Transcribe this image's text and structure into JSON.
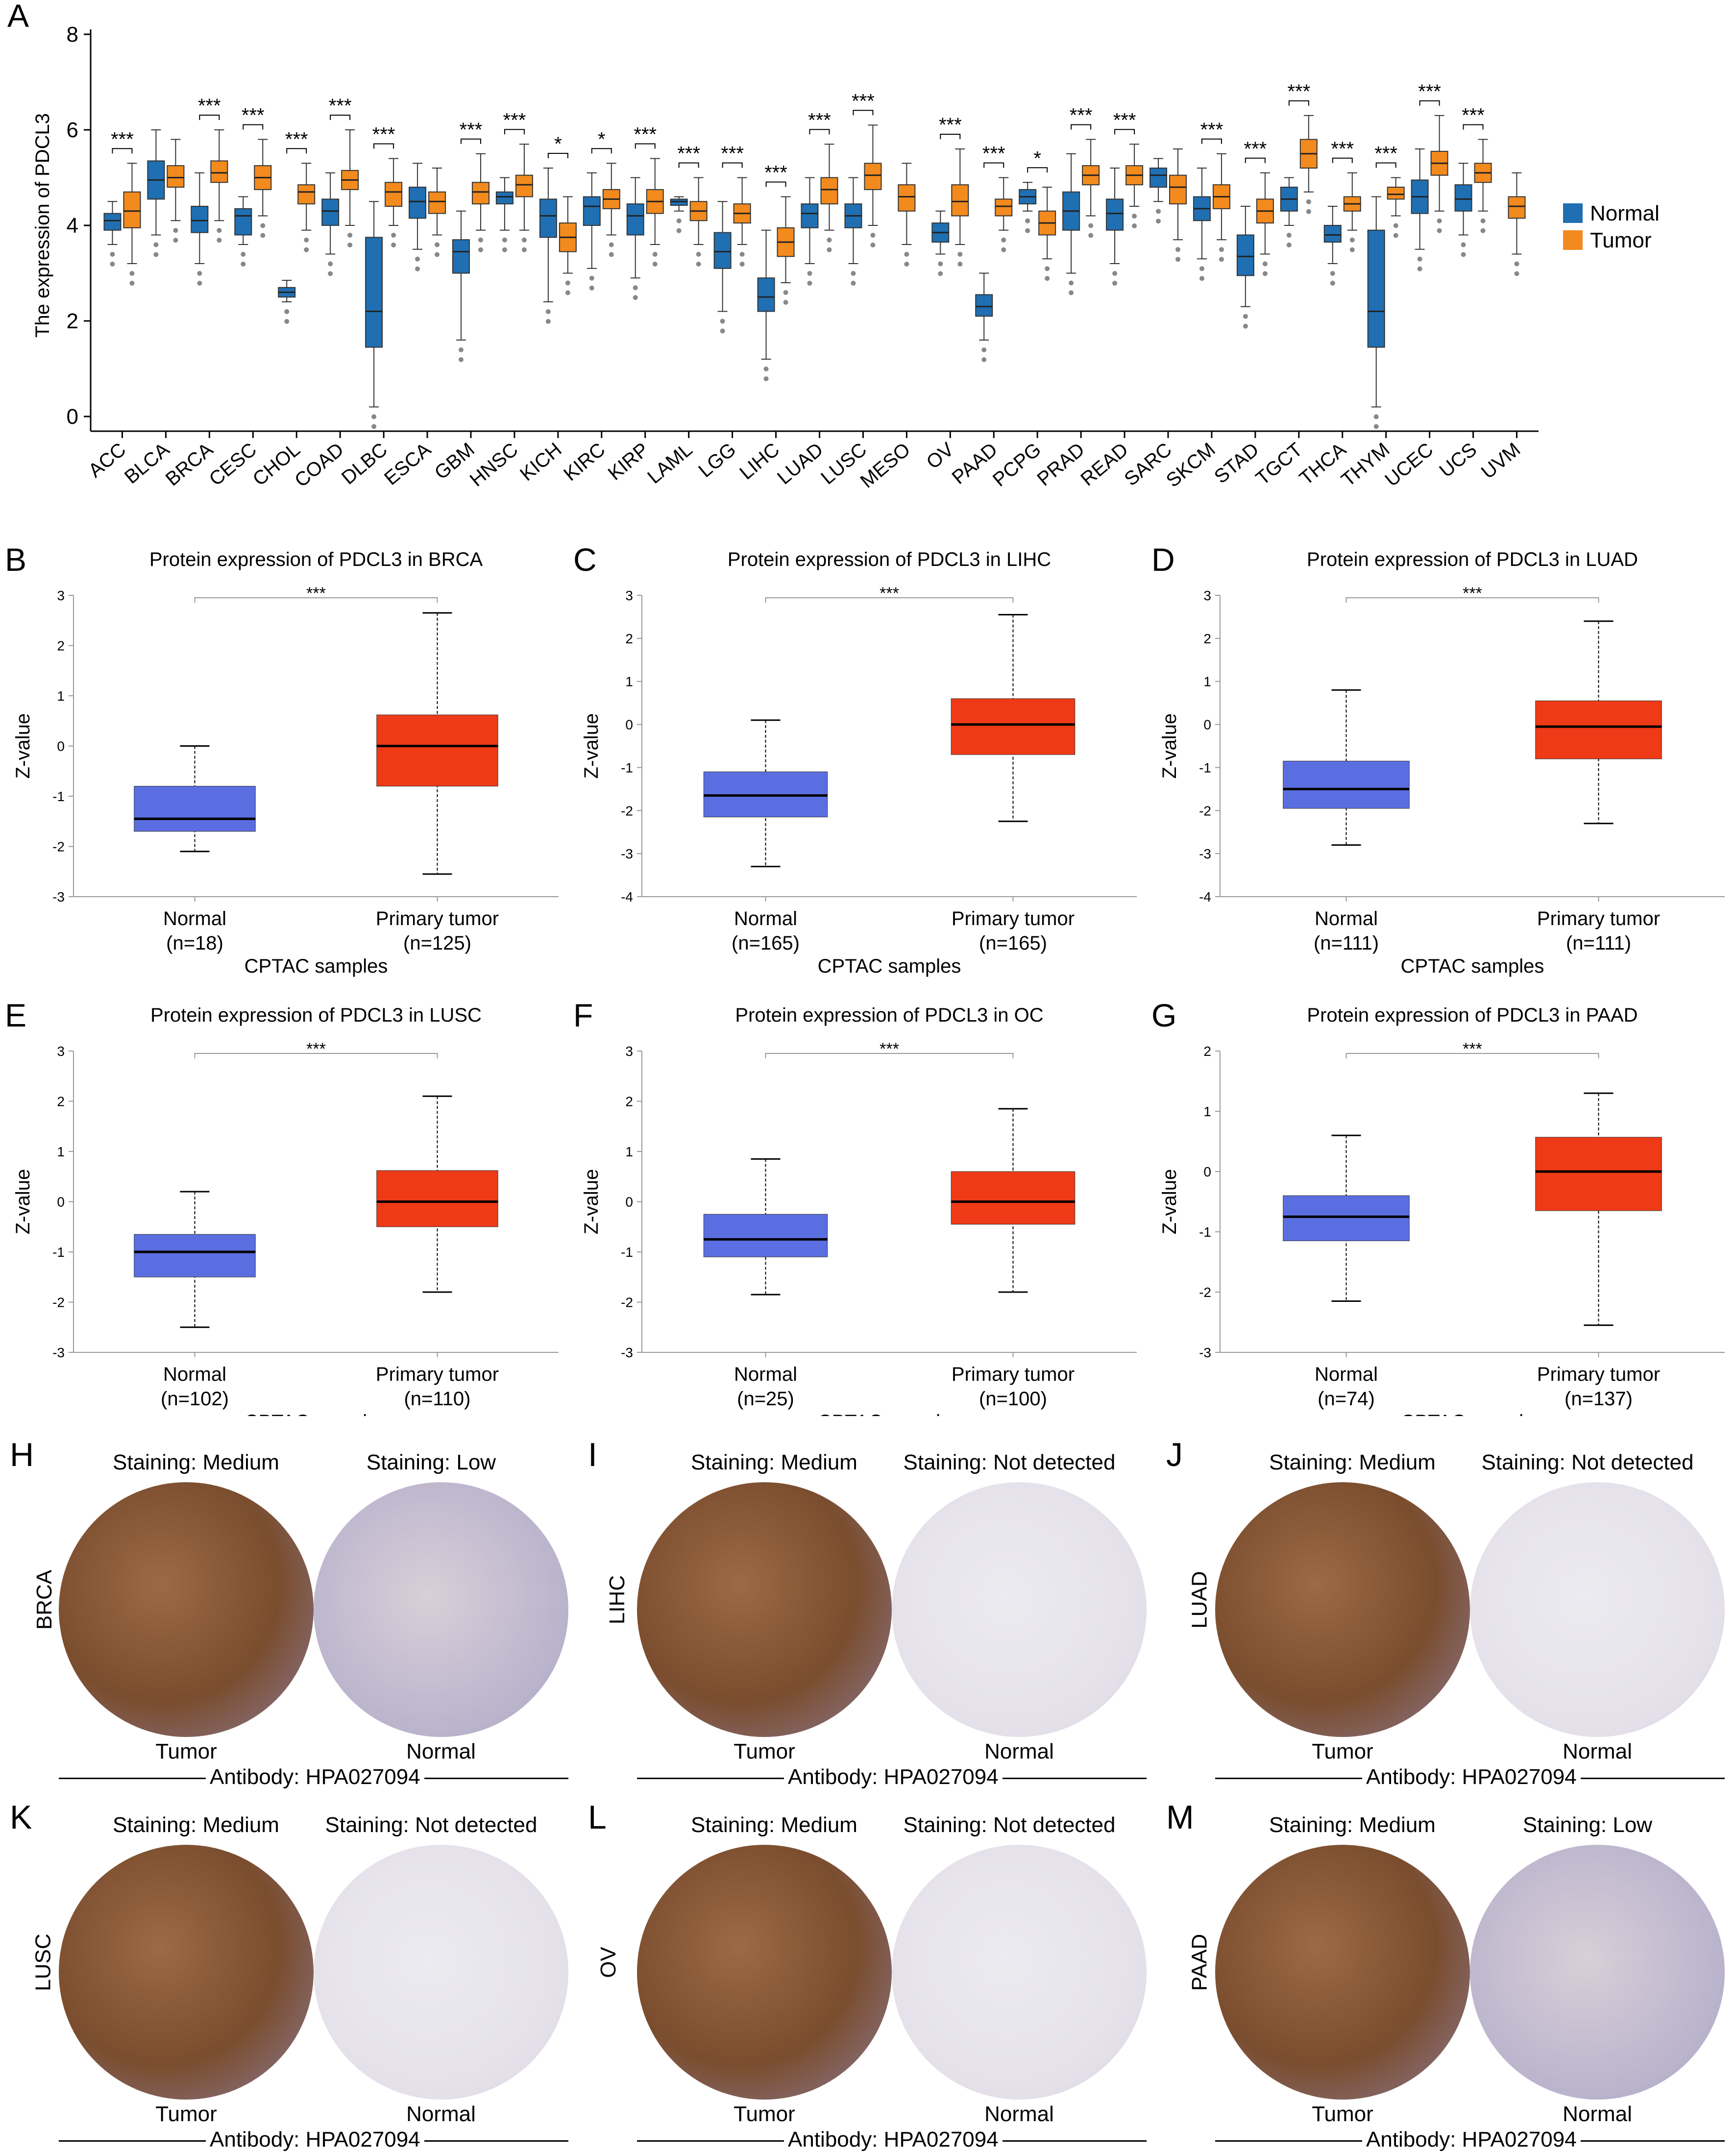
{
  "colors": {
    "normal_a": "#1f6fb2",
    "tumor_a": "#f28a1e",
    "normal_box": "#5b6ee1",
    "tumor_box": "#ee3a17",
    "stain_brown": "#9c6a45",
    "stain_brown_dark": "#7a4d2e",
    "stain_blue": "#b9b3cc",
    "stain_light": "#e4e0ea"
  },
  "chart_data": [
    {
      "panel": "A",
      "type": "box",
      "ylabel": "The expression of PDCL3",
      "ylim": [
        0,
        8
      ],
      "yticks": [
        0,
        2,
        4,
        6,
        8
      ],
      "legend": {
        "position": "right",
        "entries": [
          "Normal",
          "Tumor"
        ]
      },
      "categories": [
        {
          "name": "ACC",
          "normal": [
            3.6,
            3.9,
            4.1,
            4.25,
            4.5
          ],
          "tumor": [
            3.2,
            3.95,
            4.3,
            4.7,
            5.3
          ],
          "sig": "***"
        },
        {
          "name": "BLCA",
          "normal": [
            3.8,
            4.55,
            4.95,
            5.35,
            6.0
          ],
          "tumor": [
            4.1,
            4.8,
            5.0,
            5.25,
            5.8
          ],
          "sig": ""
        },
        {
          "name": "BRCA",
          "normal": [
            3.2,
            3.85,
            4.1,
            4.4,
            5.1
          ],
          "tumor": [
            4.1,
            4.9,
            5.1,
            5.35,
            6.0
          ],
          "sig": "***"
        },
        {
          "name": "CESC",
          "normal": [
            3.6,
            3.8,
            4.2,
            4.35,
            4.6
          ],
          "tumor": [
            4.2,
            4.75,
            5.0,
            5.25,
            5.8
          ],
          "sig": "***"
        },
        {
          "name": "CHOL",
          "normal": [
            2.4,
            2.5,
            2.6,
            2.7,
            2.85
          ],
          "tumor": [
            3.9,
            4.45,
            4.7,
            4.85,
            5.3
          ],
          "sig": "***"
        },
        {
          "name": "COAD",
          "normal": [
            3.4,
            4.0,
            4.3,
            4.55,
            5.1
          ],
          "tumor": [
            4.0,
            4.75,
            4.95,
            5.15,
            6.0
          ],
          "sig": "***"
        },
        {
          "name": "DLBC",
          "normal": [
            0.2,
            1.45,
            2.2,
            3.75,
            4.5
          ],
          "tumor": [
            4.0,
            4.4,
            4.7,
            4.9,
            5.4
          ],
          "sig": "***"
        },
        {
          "name": "ESCA",
          "normal": [
            3.5,
            4.15,
            4.5,
            4.8,
            5.3
          ],
          "tumor": [
            3.8,
            4.25,
            4.5,
            4.7,
            5.2
          ],
          "sig": ""
        },
        {
          "name": "GBM",
          "normal": [
            1.6,
            3.0,
            3.45,
            3.7,
            4.3
          ],
          "tumor": [
            3.9,
            4.45,
            4.7,
            4.9,
            5.5
          ],
          "sig": "***"
        },
        {
          "name": "HNSC",
          "normal": [
            3.9,
            4.45,
            4.6,
            4.7,
            5.0
          ],
          "tumor": [
            3.9,
            4.6,
            4.85,
            5.05,
            5.7
          ],
          "sig": "***"
        },
        {
          "name": "KICH",
          "normal": [
            2.4,
            3.75,
            4.2,
            4.55,
            5.2
          ],
          "tumor": [
            3.0,
            3.45,
            3.75,
            4.05,
            4.6
          ],
          "sig": "*"
        },
        {
          "name": "KIRC",
          "normal": [
            3.1,
            4.0,
            4.4,
            4.6,
            5.1
          ],
          "tumor": [
            3.8,
            4.35,
            4.55,
            4.75,
            5.3
          ],
          "sig": "*"
        },
        {
          "name": "KIRP",
          "normal": [
            2.9,
            3.8,
            4.2,
            4.45,
            5.0
          ],
          "tumor": [
            3.6,
            4.25,
            4.5,
            4.75,
            5.4
          ],
          "sig": "***"
        },
        {
          "name": "LAML",
          "normal": [
            4.3,
            4.42,
            4.5,
            4.55,
            4.6
          ],
          "tumor": [
            3.6,
            4.1,
            4.3,
            4.5,
            5.0
          ],
          "sig": "***"
        },
        {
          "name": "LGG",
          "normal": [
            2.2,
            3.1,
            3.45,
            3.85,
            4.5
          ],
          "tumor": [
            3.6,
            4.05,
            4.25,
            4.45,
            5.0
          ],
          "sig": "***"
        },
        {
          "name": "LIHC",
          "normal": [
            1.2,
            2.2,
            2.5,
            2.9,
            3.9
          ],
          "tumor": [
            2.8,
            3.35,
            3.65,
            3.95,
            4.6
          ],
          "sig": "***"
        },
        {
          "name": "LUAD",
          "normal": [
            3.2,
            3.95,
            4.25,
            4.45,
            5.0
          ],
          "tumor": [
            3.9,
            4.45,
            4.75,
            5.0,
            5.7
          ],
          "sig": "***"
        },
        {
          "name": "LUSC",
          "normal": [
            3.2,
            3.95,
            4.2,
            4.45,
            5.0
          ],
          "tumor": [
            4.0,
            4.75,
            5.05,
            5.3,
            6.1
          ],
          "sig": "***"
        },
        {
          "name": "MESO",
          "normal": null,
          "tumor": [
            3.6,
            4.3,
            4.6,
            4.85,
            5.3
          ],
          "sig": ""
        },
        {
          "name": "OV",
          "normal": [
            3.4,
            3.65,
            3.85,
            4.05,
            4.3
          ],
          "tumor": [
            3.6,
            4.2,
            4.5,
            4.85,
            5.6
          ],
          "sig": "***"
        },
        {
          "name": "PAAD",
          "normal": [
            1.6,
            2.1,
            2.3,
            2.55,
            3.0
          ],
          "tumor": [
            3.9,
            4.2,
            4.4,
            4.55,
            5.0
          ],
          "sig": "***"
        },
        {
          "name": "PCPG",
          "normal": [
            4.3,
            4.45,
            4.6,
            4.75,
            4.9
          ],
          "tumor": [
            3.3,
            3.8,
            4.05,
            4.3,
            4.8
          ],
          "sig": "*"
        },
        {
          "name": "PRAD",
          "normal": [
            3.0,
            3.9,
            4.3,
            4.7,
            5.5
          ],
          "tumor": [
            4.2,
            4.85,
            5.05,
            5.25,
            5.8
          ],
          "sig": "***"
        },
        {
          "name": "READ",
          "normal": [
            3.2,
            3.9,
            4.25,
            4.55,
            5.2
          ],
          "tumor": [
            4.4,
            4.85,
            5.05,
            5.25,
            5.7
          ],
          "sig": "***"
        },
        {
          "name": "SARC",
          "normal": [
            4.5,
            4.8,
            5.05,
            5.2,
            5.4
          ],
          "tumor": [
            3.7,
            4.45,
            4.8,
            5.05,
            5.6
          ],
          "sig": ""
        },
        {
          "name": "SKCM",
          "normal": [
            3.3,
            4.1,
            4.35,
            4.6,
            5.2
          ],
          "tumor": [
            3.7,
            4.35,
            4.6,
            4.85,
            5.5
          ],
          "sig": "***"
        },
        {
          "name": "STAD",
          "normal": [
            2.3,
            2.95,
            3.35,
            3.8,
            4.4
          ],
          "tumor": [
            3.4,
            4.05,
            4.3,
            4.55,
            5.1
          ],
          "sig": "***"
        },
        {
          "name": "TGCT",
          "normal": [
            4.0,
            4.3,
            4.55,
            4.8,
            5.0
          ],
          "tumor": [
            4.7,
            5.2,
            5.5,
            5.8,
            6.3
          ],
          "sig": "***"
        },
        {
          "name": "THCA",
          "normal": [
            3.2,
            3.65,
            3.8,
            4.0,
            4.4
          ],
          "tumor": [
            3.9,
            4.3,
            4.45,
            4.6,
            5.1
          ],
          "sig": "***"
        },
        {
          "name": "THYM",
          "normal": [
            0.2,
            1.45,
            2.2,
            3.9,
            4.6
          ],
          "tumor": [
            4.2,
            4.55,
            4.65,
            4.8,
            5.0
          ],
          "sig": "***"
        },
        {
          "name": "UCEC",
          "normal": [
            3.5,
            4.25,
            4.6,
            4.95,
            5.6
          ],
          "tumor": [
            4.3,
            5.05,
            5.3,
            5.55,
            6.3
          ],
          "sig": "***"
        },
        {
          "name": "UCS",
          "normal": [
            3.8,
            4.3,
            4.55,
            4.85,
            5.3
          ],
          "tumor": [
            4.3,
            4.9,
            5.1,
            5.3,
            5.8
          ],
          "sig": "***"
        },
        {
          "name": "UVM",
          "normal": null,
          "tumor": [
            3.4,
            4.15,
            4.4,
            4.6,
            5.1
          ],
          "sig": ""
        }
      ]
    },
    {
      "panel": "B",
      "type": "box",
      "title": "Protein expression of PDCL3 in BRCA",
      "ylabel": "Z-value",
      "xlabel": "CPTAC samples",
      "ylim": [
        -3,
        3
      ],
      "yticks": [
        -3,
        -2,
        -1,
        0,
        1,
        2,
        3
      ],
      "sig": "***",
      "groups": [
        {
          "label": "Normal",
          "n": "(n=18)",
          "stats": [
            -2.1,
            -1.7,
            -1.45,
            -0.8,
            0.0
          ]
        },
        {
          "label": "Primary tumor",
          "n": "(n=125)",
          "stats": [
            -2.55,
            -0.8,
            0.0,
            0.62,
            2.65
          ]
        }
      ]
    },
    {
      "panel": "C",
      "type": "box",
      "title": "Protein expression of PDCL3 in LIHC",
      "ylabel": "Z-value",
      "xlabel": "CPTAC samples",
      "ylim": [
        -4,
        3
      ],
      "yticks": [
        -4,
        -3,
        -2,
        -1,
        0,
        1,
        2,
        3
      ],
      "sig": "***",
      "groups": [
        {
          "label": "Normal",
          "n": "(n=165)",
          "stats": [
            -3.3,
            -2.15,
            -1.65,
            -1.1,
            0.1
          ]
        },
        {
          "label": "Primary tumor",
          "n": "(n=165)",
          "stats": [
            -2.25,
            -0.7,
            0.0,
            0.6,
            2.55
          ]
        }
      ]
    },
    {
      "panel": "D",
      "type": "box",
      "title": "Protein expression of PDCL3 in LUAD",
      "ylabel": "Z-value",
      "xlabel": "CPTAC samples",
      "ylim": [
        -4,
        3
      ],
      "yticks": [
        -4,
        -3,
        -2,
        -1,
        0,
        1,
        2,
        3
      ],
      "sig": "***",
      "groups": [
        {
          "label": "Normal",
          "n": "(n=111)",
          "stats": [
            -2.8,
            -1.95,
            -1.5,
            -0.85,
            0.8
          ]
        },
        {
          "label": "Primary tumor",
          "n": "(n=111)",
          "stats": [
            -2.3,
            -0.8,
            -0.05,
            0.55,
            2.4
          ]
        }
      ]
    },
    {
      "panel": "E",
      "type": "box",
      "title": "Protein expression of PDCL3 in LUSC",
      "ylabel": "Z-value",
      "xlabel": "CPTAC samples",
      "ylim": [
        -3,
        3
      ],
      "yticks": [
        -3,
        -2,
        -1,
        0,
        1,
        2,
        3
      ],
      "sig": "***",
      "groups": [
        {
          "label": "Normal",
          "n": "(n=102)",
          "stats": [
            -2.5,
            -1.5,
            -1.0,
            -0.65,
            0.2
          ]
        },
        {
          "label": "Primary tumor",
          "n": "(n=110)",
          "stats": [
            -1.8,
            -0.5,
            0.0,
            0.62,
            2.1
          ]
        }
      ]
    },
    {
      "panel": "F",
      "type": "box",
      "title": "Protein expression of PDCL3 in OC",
      "ylabel": "Z-value",
      "xlabel": "CPTAC samples",
      "ylim": [
        -3,
        3
      ],
      "yticks": [
        -3,
        -2,
        -1,
        0,
        1,
        2,
        3
      ],
      "sig": "***",
      "groups": [
        {
          "label": "Normal",
          "n": "(n=25)",
          "stats": [
            -1.85,
            -1.1,
            -0.75,
            -0.25,
            0.85
          ]
        },
        {
          "label": "Primary tumor",
          "n": "(n=100)",
          "stats": [
            -1.8,
            -0.45,
            0.0,
            0.6,
            1.85
          ]
        }
      ]
    },
    {
      "panel": "G",
      "type": "box",
      "title": "Protein expression of PDCL3 in PAAD",
      "ylabel": "Z-value",
      "xlabel": "CPTAC samples",
      "ylim": [
        -3,
        2
      ],
      "yticks": [
        -3,
        -2,
        -1,
        0,
        1,
        2
      ],
      "sig": "***",
      "groups": [
        {
          "label": "Normal",
          "n": "(n=74)",
          "stats": [
            -2.15,
            -1.15,
            -0.75,
            -0.4,
            0.6
          ]
        },
        {
          "label": "Primary tumor",
          "n": "(n=137)",
          "stats": [
            -2.55,
            -0.65,
            0.0,
            0.57,
            1.3
          ]
        }
      ]
    }
  ],
  "ihc": [
    {
      "letter": "H",
      "cancer": "BRCA",
      "left_stain": "Staining: Medium",
      "right_stain": "Staining: Low",
      "left_tissue": "Tumor",
      "right_tissue": "Normal",
      "antibody": "Antibody: HPA027094"
    },
    {
      "letter": "I",
      "cancer": "LIHC",
      "left_stain": "Staining: Medium",
      "right_stain": "Staining: Not detected",
      "left_tissue": "Tumor",
      "right_tissue": "Normal",
      "antibody": "Antibody: HPA027094"
    },
    {
      "letter": "J",
      "cancer": "LUAD",
      "left_stain": "Staining: Medium",
      "right_stain": "Staining: Not detected",
      "left_tissue": "Tumor",
      "right_tissue": "Normal",
      "antibody": "Antibody: HPA027094"
    },
    {
      "letter": "K",
      "cancer": "LUSC",
      "left_stain": "Staining: Medium",
      "right_stain": "Staining: Not detected",
      "left_tissue": "Tumor",
      "right_tissue": "Normal",
      "antibody": "Antibody: HPA027094"
    },
    {
      "letter": "L",
      "cancer": "OV",
      "left_stain": "Staining: Medium",
      "right_stain": "Staining: Not detected",
      "left_tissue": "Tumor",
      "right_tissue": "Normal",
      "antibody": "Antibody: HPA027094"
    },
    {
      "letter": "M",
      "cancer": "PAAD",
      "left_stain": "Staining: Medium",
      "right_stain": "Staining: Low",
      "left_tissue": "Tumor",
      "right_tissue": "Normal",
      "antibody": "Antibody: HPA027094"
    }
  ]
}
